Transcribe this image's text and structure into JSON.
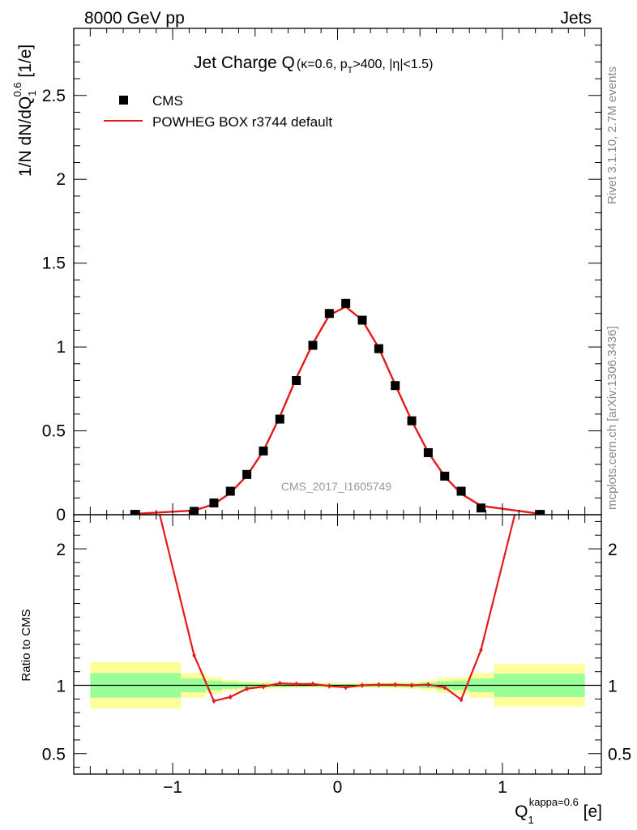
{
  "header": {
    "energy_label": "8000 GeV pp",
    "process_label": "Jets"
  },
  "side_labels": {
    "rivet": "Rivet 3.1.10,  2.7M events",
    "mcplots": "mcplots.cern.ch [arXiv:1306.3436]"
  },
  "chart_data": [
    {
      "type": "scatter",
      "title_main": "Jet Charge Q",
      "title_detail": "(κ=0.6, p",
      "title_sub_T": "T",
      "title_rest": ">400, |η|<1.5)",
      "ylabel_main": "1/N dN/dQ",
      "ylabel_sub": "1",
      "ylabel_sup": "0.6",
      "ylabel_unit": " [1/e]",
      "analysis_id": "CMS_2017_I1605749",
      "xlim": [
        -1.6,
        1.6
      ],
      "ylim": [
        0,
        2.9
      ],
      "yticks": [
        0,
        0.5,
        1,
        1.5,
        2,
        2.5
      ],
      "ytick_labels": [
        "0",
        "0.5",
        "1",
        "1.5",
        "2",
        "2.5"
      ],
      "legend_placement": "top-left",
      "series": [
        {
          "name": "CMS",
          "style": "markers",
          "color": "#000000",
          "x": [
            -1.23,
            -0.87,
            -0.75,
            -0.65,
            -0.55,
            -0.45,
            -0.35,
            -0.25,
            -0.15,
            -0.05,
            0.05,
            0.15,
            0.25,
            0.35,
            0.45,
            0.55,
            0.65,
            0.75,
            0.87,
            1.23
          ],
          "y": [
            0.002,
            0.02,
            0.07,
            0.14,
            0.24,
            0.38,
            0.57,
            0.8,
            1.01,
            1.2,
            1.26,
            1.16,
            0.99,
            0.77,
            0.56,
            0.37,
            0.23,
            0.14,
            0.04,
            0.002
          ]
        },
        {
          "name": "POWHEG BOX r3744 default",
          "style": "line",
          "color": "#e31a1c",
          "x": [
            -1.23,
            -0.87,
            -0.75,
            -0.65,
            -0.55,
            -0.45,
            -0.35,
            -0.25,
            -0.15,
            -0.05,
            0.05,
            0.15,
            0.25,
            0.35,
            0.45,
            0.55,
            0.65,
            0.75,
            0.87,
            1.23
          ],
          "y": [
            0.005,
            0.025,
            0.062,
            0.13,
            0.232,
            0.38,
            0.585,
            0.815,
            1.02,
            1.19,
            1.24,
            1.16,
            0.995,
            0.775,
            0.56,
            0.372,
            0.228,
            0.125,
            0.053,
            0.005
          ]
        }
      ]
    },
    {
      "type": "line",
      "ylabel": "Ratio to CMS",
      "xlabel_main": "Q",
      "xlabel_sub": "1",
      "xlabel_sup": "kappa=0.6",
      "xlabel_unit": " [e]",
      "xlim": [
        -1.6,
        1.6
      ],
      "ylim": [
        0.35,
        2.25
      ],
      "xticks": [
        -1,
        0,
        1
      ],
      "xtick_labels": [
        "−1",
        "0",
        "1"
      ],
      "yticks": [
        0.5,
        1,
        2
      ],
      "ytick_labels": [
        "0.5",
        "1",
        "2"
      ],
      "reference_line": 1,
      "bands": {
        "edges": [
          -1.5,
          -0.95,
          -0.8,
          -0.7,
          -0.6,
          -0.5,
          -0.4,
          -0.3,
          -0.2,
          -0.1,
          0,
          0.1,
          0.2,
          0.3,
          0.4,
          0.5,
          0.6,
          0.7,
          0.8,
          0.95,
          1.5
        ],
        "inner_halfwidth": [
          0.09,
          0.05,
          0.035,
          0.025,
          0.018,
          0.014,
          0.012,
          0.011,
          0.01,
          0.01,
          0.01,
          0.01,
          0.011,
          0.012,
          0.014,
          0.02,
          0.03,
          0.035,
          0.05,
          0.085
        ],
        "outer_halfwidth": [
          0.17,
          0.09,
          0.06,
          0.04,
          0.03,
          0.025,
          0.022,
          0.02,
          0.018,
          0.018,
          0.018,
          0.018,
          0.02,
          0.022,
          0.025,
          0.035,
          0.055,
          0.06,
          0.09,
          0.155
        ],
        "inner_color": "#99ff99",
        "outer_color": "#ffff99"
      },
      "series": [
        {
          "name": "POWHEG BOX r3744 default",
          "color": "#e31a1c",
          "x": [
            -1.23,
            -0.87,
            -0.75,
            -0.65,
            -0.55,
            -0.45,
            -0.35,
            -0.25,
            -0.15,
            -0.05,
            0.05,
            0.15,
            0.25,
            0.35,
            0.45,
            0.55,
            0.65,
            0.75,
            0.87,
            1.23
          ],
          "y": [
            3.0,
            1.22,
            0.885,
            0.915,
            0.975,
            0.99,
            1.015,
            1.01,
            1.01,
            0.995,
            0.985,
            1.0,
            1.005,
            1.005,
            1.0,
            1.005,
            0.985,
            0.895,
            1.26,
            3.0
          ]
        }
      ]
    }
  ]
}
